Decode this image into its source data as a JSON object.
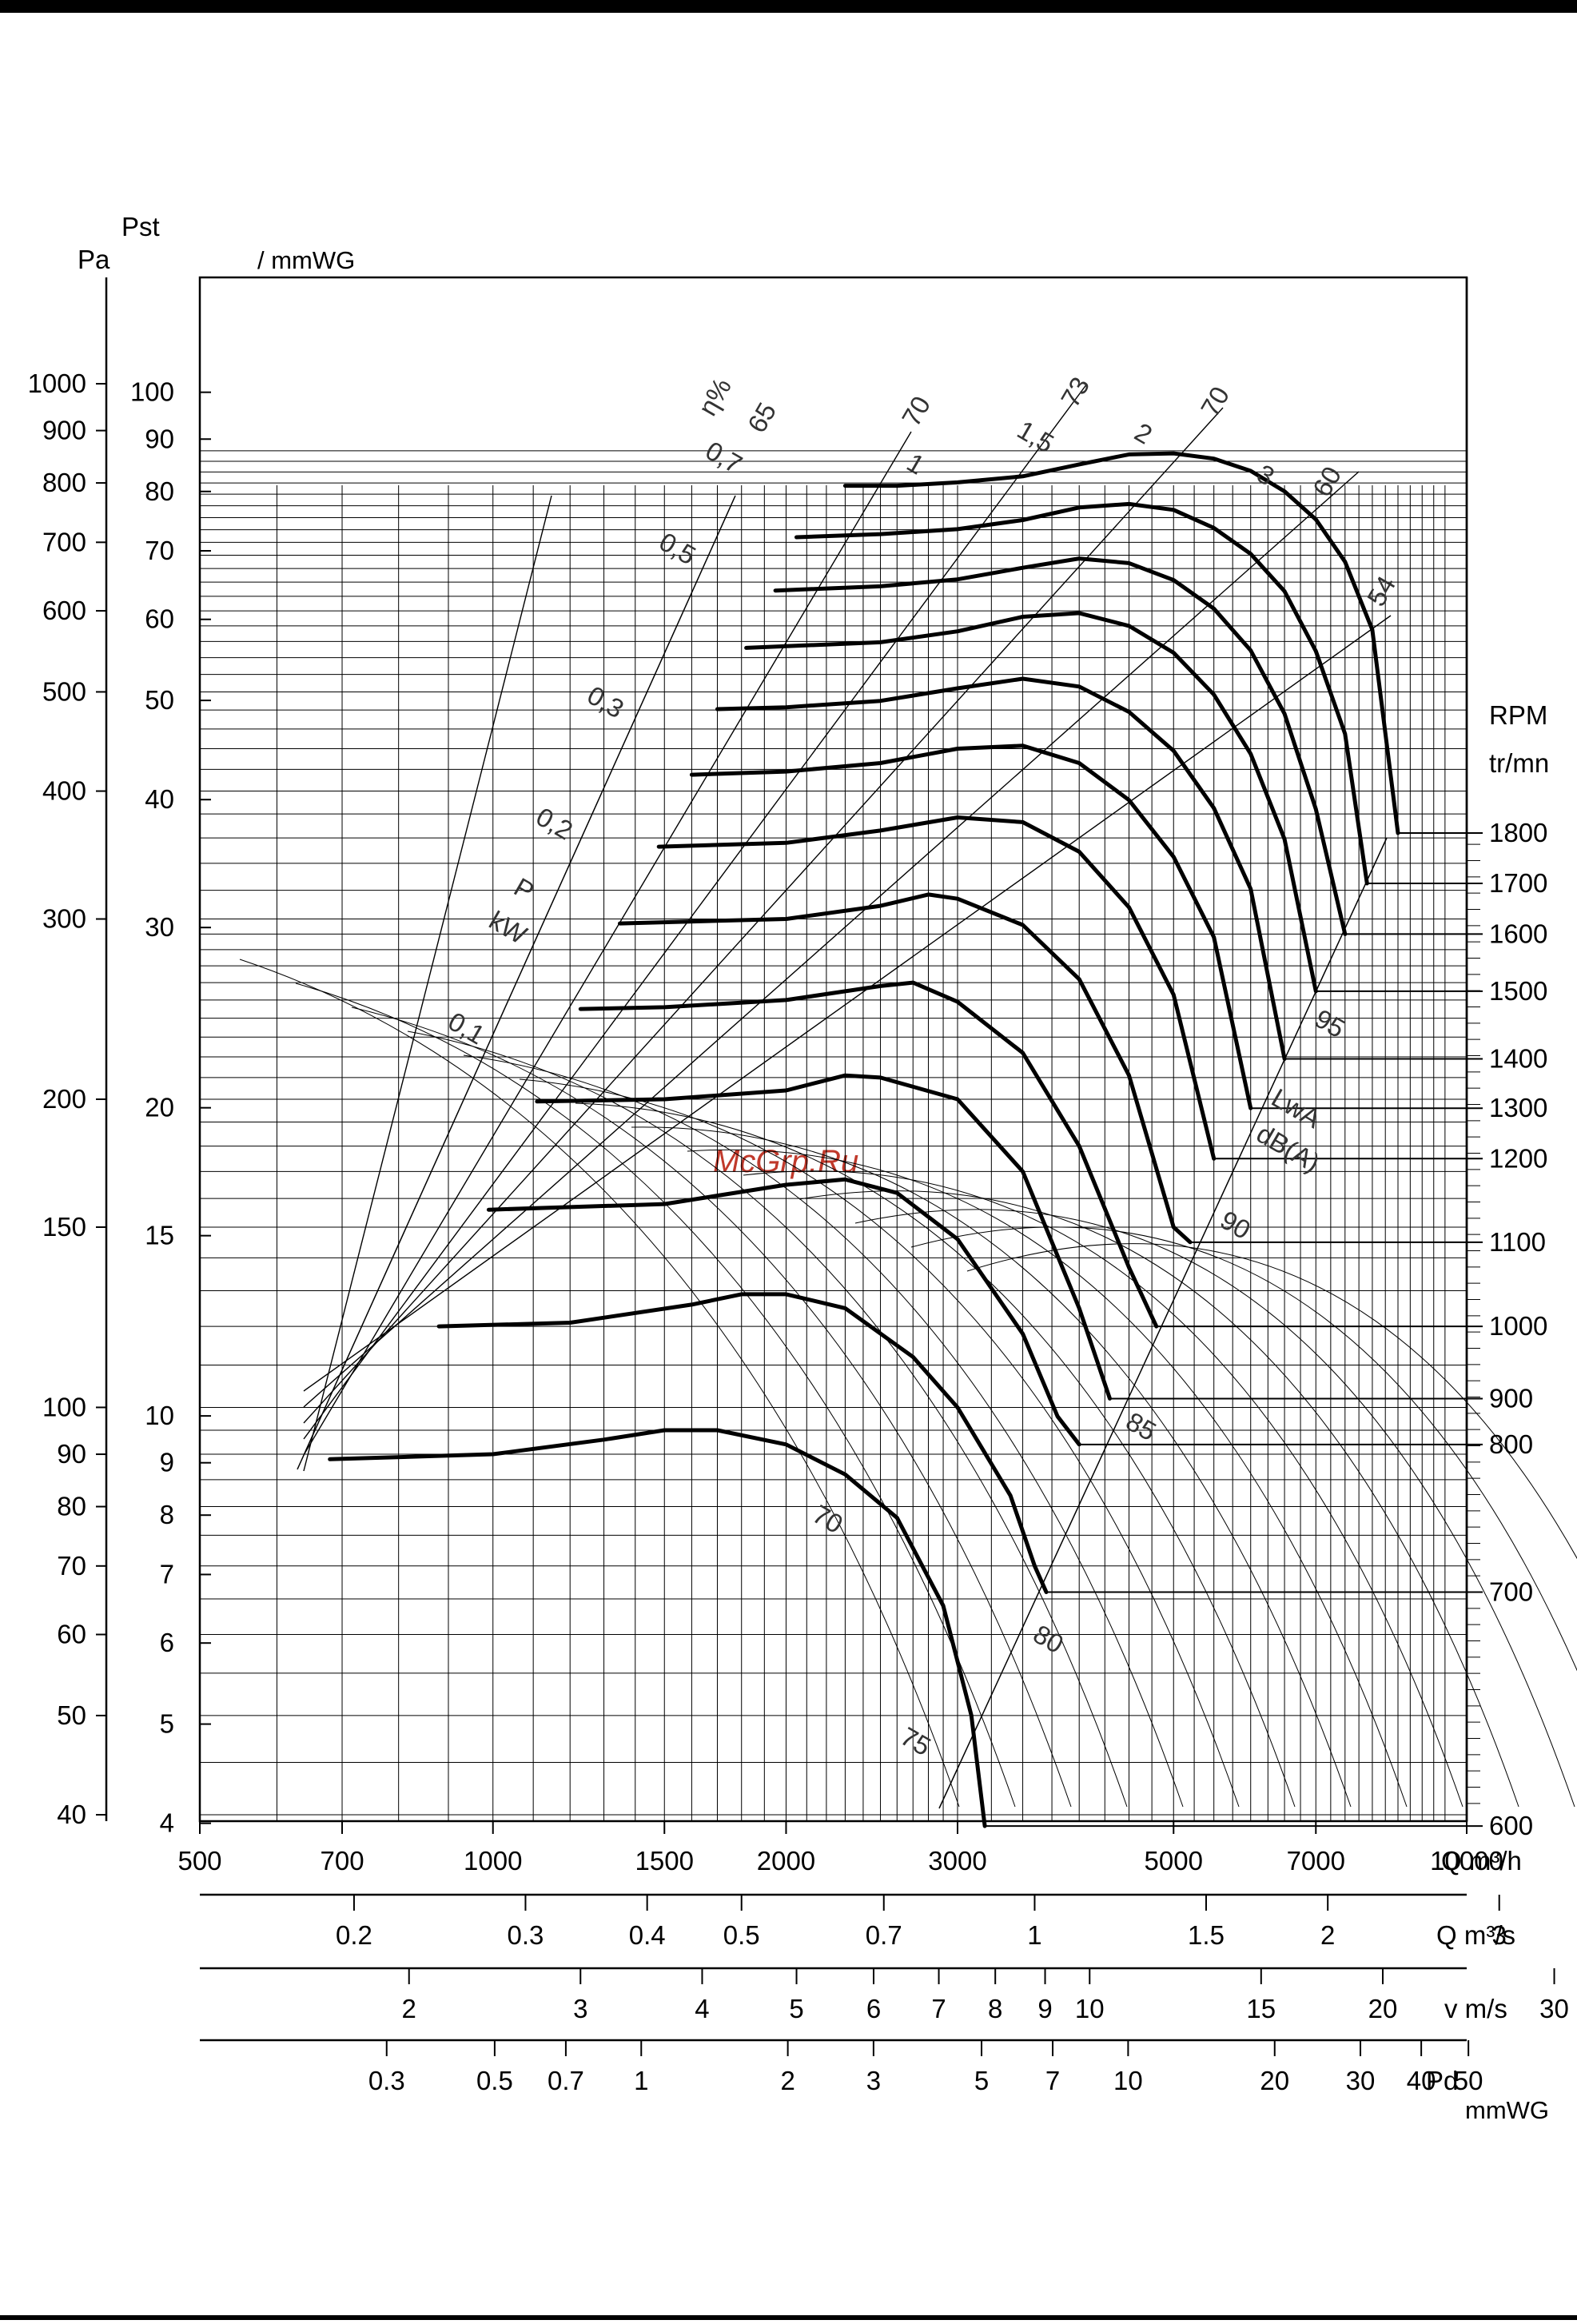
{
  "chart_data": {
    "type": "line",
    "scale": "log-log",
    "watermark": "McGrp.Ru",
    "axes": {
      "y_pa": {
        "unit": "Pa",
        "title": "Pst",
        "ticks": [
          "1000",
          "900",
          "800",
          "700",
          "600",
          "500",
          "400",
          "300",
          "200",
          "150",
          "100",
          "90",
          "80",
          "70",
          "60",
          "50",
          "40"
        ],
        "range": [
          40,
          1000
        ]
      },
      "y_mmwg": {
        "unit": "/ mmWG",
        "ticks": [
          "100",
          "90",
          "80",
          "70",
          "60",
          "50",
          "40",
          "30",
          "20",
          "15",
          "10",
          "9",
          "8",
          "7",
          "6",
          "5",
          "4"
        ],
        "range": [
          4,
          100
        ]
      },
      "y_rpm": {
        "title": "RPM",
        "unit": "tr/mn",
        "ticks": [
          "1800",
          "1700",
          "1600",
          "1500",
          "1400",
          "1300",
          "1200",
          "1100",
          "1000",
          "900",
          "800",
          "700",
          "600"
        ]
      },
      "x_m3h": {
        "unit": "Q m³/h",
        "ticks": [
          "500",
          "700",
          "1000",
          "1500",
          "2000",
          "3000",
          "5000",
          "7000",
          "10000"
        ],
        "range": [
          500,
          10000
        ]
      },
      "x_m3s": {
        "unit": "Q m³/s",
        "ticks": [
          "0.2",
          "0.3",
          "0.4",
          "0.5",
          "0.7",
          "1",
          "1.5",
          "2",
          "3"
        ]
      },
      "x_vms": {
        "unit": "v m/s",
        "ticks": [
          "2",
          "3",
          "4",
          "5",
          "6",
          "7",
          "8",
          "9",
          "10",
          "15",
          "20",
          "30"
        ]
      },
      "x_pd": {
        "unit": "Pd",
        "unit2": "mmWG",
        "ticks": [
          "0.3",
          "0.5",
          "0.7",
          "1",
          "2",
          "3",
          "5",
          "7",
          "10",
          "20",
          "30",
          "40",
          "50"
        ]
      }
    },
    "efficiency": {
      "label": "η%",
      "values": [
        "65",
        "70",
        "73",
        "70",
        "60",
        "54"
      ],
      "extra": [
        "70",
        "75"
      ]
    },
    "power": {
      "label_p": "P",
      "label_kw": "kW",
      "values": [
        "0,1",
        "0,2",
        "0,3",
        "0,5",
        "0,7",
        "1",
        "1,5",
        "2",
        "3"
      ]
    },
    "sound": {
      "label_lwa": "LwA",
      "label_db": "dB(A)",
      "values": [
        "80",
        "85",
        "90",
        "95"
      ]
    },
    "series": [
      {
        "name": "1800",
        "q": [
          2300,
          2600,
          3000,
          3500,
          4000,
          4500,
          5000,
          5500,
          6000,
          6500,
          7000,
          7500,
          8000,
          8500
        ],
        "ps": [
          795,
          795,
          801,
          812,
          834,
          853,
          855,
          845,
          822,
          785,
          737,
          670,
          575,
          364
        ]
      },
      {
        "name": "1700",
        "q": [
          2050,
          2500,
          3000,
          3500,
          4000,
          4500,
          5000,
          5500,
          6000,
          6500,
          7000,
          7500,
          7900
        ],
        "ps": [
          708,
          713,
          721,
          736,
          757,
          763,
          753,
          723,
          682,
          627,
          548,
          455,
          325
        ]
      },
      {
        "name": "1600",
        "q": [
          1950,
          2500,
          3000,
          3500,
          4000,
          4500,
          5000,
          5500,
          6000,
          6500,
          7000,
          7500
        ],
        "ps": [
          628,
          634,
          644,
          661,
          675,
          668,
          643,
          603,
          549,
          476,
          384,
          290
        ]
      },
      {
        "name": "1500",
        "q": [
          1820,
          2500,
          3000,
          3500,
          4000,
          4500,
          5000,
          5500,
          6000,
          6500,
          7000
        ],
        "ps": [
          552,
          559,
          573,
          592,
          597,
          580,
          546,
          497,
          435,
          359,
          255
        ]
      },
      {
        "name": "1400",
        "q": [
          1700,
          2000,
          2500,
          3000,
          3500,
          4000,
          4500,
          5000,
          5500,
          6000,
          6500
        ],
        "ps": [
          481,
          483,
          490,
          504,
          515,
          506,
          478,
          438,
          385,
          321,
          219
        ]
      },
      {
        "name": "1300",
        "q": [
          1600,
          2000,
          2500,
          3000,
          3500,
          4000,
          4500,
          5000,
          5500,
          6000
        ],
        "ps": [
          415,
          418,
          426,
          440,
          443,
          426,
          392,
          345,
          288,
          196
        ]
      },
      {
        "name": "1200",
        "q": [
          1480,
          2000,
          2500,
          3000,
          3500,
          4000,
          4500,
          5000,
          5500
        ],
        "ps": [
          353,
          356,
          366,
          377,
          373,
          349,
          308,
          253,
          175
        ]
      },
      {
        "name": "1100",
        "q": [
          1350,
          2000,
          2500,
          2800,
          3000,
          3500,
          4000,
          4500,
          5000,
          5200
        ],
        "ps": [
          297,
          300,
          309,
          317,
          314,
          296,
          262,
          211,
          150,
          145
        ]
      },
      {
        "name": "1000",
        "q": [
          1230,
          1500,
          2000,
          2500,
          2700,
          3000,
          3500,
          4000,
          4500,
          4800
        ],
        "ps": [
          245,
          246,
          250,
          258,
          260,
          249,
          222,
          180,
          137,
          120
        ]
      },
      {
        "name": "900",
        "q": [
          1110,
          1500,
          2000,
          2300,
          2500,
          3000,
          3500,
          4000,
          4300
        ],
        "ps": [
          199,
          200,
          204,
          211,
          210,
          200,
          170,
          125,
          102
        ]
      },
      {
        "name": "800",
        "q": [
          990,
          1500,
          2000,
          2300,
          2600,
          3000,
          3500,
          3800,
          4000
        ],
        "ps": [
          156,
          158,
          165,
          167,
          162,
          146,
          118,
          98,
          92
        ]
      },
      {
        "name": "700",
        "q": [
          880,
          1200,
          1600,
          1800,
          2000,
          2300,
          2700,
          3000,
          3400,
          3600,
          3700
        ],
        "ps": [
          120,
          121,
          126,
          129,
          129,
          125,
          112,
          100,
          82,
          70,
          66
        ]
      },
      {
        "name": "600",
        "q": [
          680,
          1000,
          1300,
          1500,
          1700,
          2000,
          2300,
          2600,
          2900,
          3100,
          3200
        ],
        "ps": [
          89,
          90,
          93,
          95,
          95,
          92,
          86,
          78,
          64,
          50,
          39
        ]
      }
    ]
  }
}
